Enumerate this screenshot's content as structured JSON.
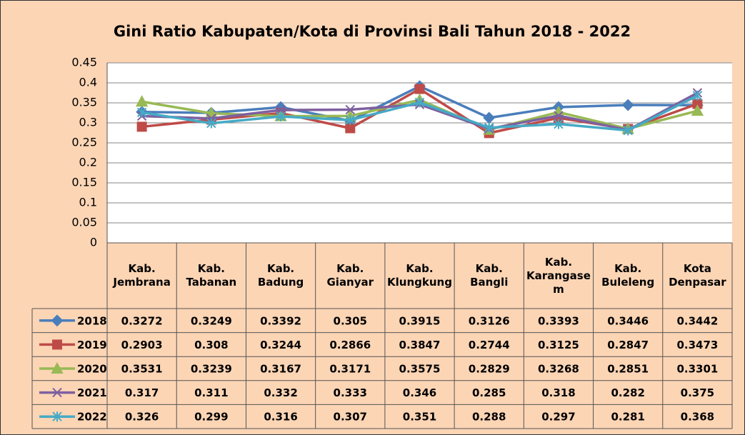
{
  "chart_data": {
    "type": "line",
    "title": "Gini Ratio Kabupaten/Kota di  Provinsi Bali Tahun 2018 - 2022",
    "categories": [
      "Kab. Jembrana",
      "Kab. Tabanan",
      "Kab. Badung",
      "Kab. Gianyar",
      "Kab. Klungkung",
      "Kab. Bangli",
      "Kab. Karangasem",
      "Kab. Buleleng",
      "Kota Denpasar"
    ],
    "series": [
      {
        "name": "2018",
        "color": "#4a7ebb",
        "marker": "diamond",
        "values": [
          0.3272,
          0.3249,
          0.3392,
          0.305,
          0.3915,
          0.3126,
          0.3393,
          0.3446,
          0.3442
        ]
      },
      {
        "name": "2019",
        "color": "#be4b48",
        "marker": "square",
        "values": [
          0.2903,
          0.308,
          0.3244,
          0.2866,
          0.3847,
          0.2744,
          0.3125,
          0.2847,
          0.3473
        ]
      },
      {
        "name": "2020",
        "color": "#98b954",
        "marker": "triangle",
        "values": [
          0.3531,
          0.3239,
          0.3167,
          0.3171,
          0.3575,
          0.2829,
          0.3268,
          0.2851,
          0.3301
        ]
      },
      {
        "name": "2021",
        "color": "#7d60a0",
        "marker": "x",
        "values": [
          0.317,
          0.311,
          0.332,
          0.333,
          0.346,
          0.285,
          0.318,
          0.282,
          0.375
        ]
      },
      {
        "name": "2022",
        "color": "#46aac5",
        "marker": "star",
        "values": [
          0.326,
          0.299,
          0.316,
          0.307,
          0.351,
          0.288,
          0.297,
          0.281,
          0.368
        ]
      }
    ],
    "ylim": [
      0,
      0.45
    ],
    "yticks": [
      0,
      0.05,
      0.1,
      0.15,
      0.2,
      0.25,
      0.3,
      0.35,
      0.4,
      0.45
    ],
    "grid": true
  }
}
